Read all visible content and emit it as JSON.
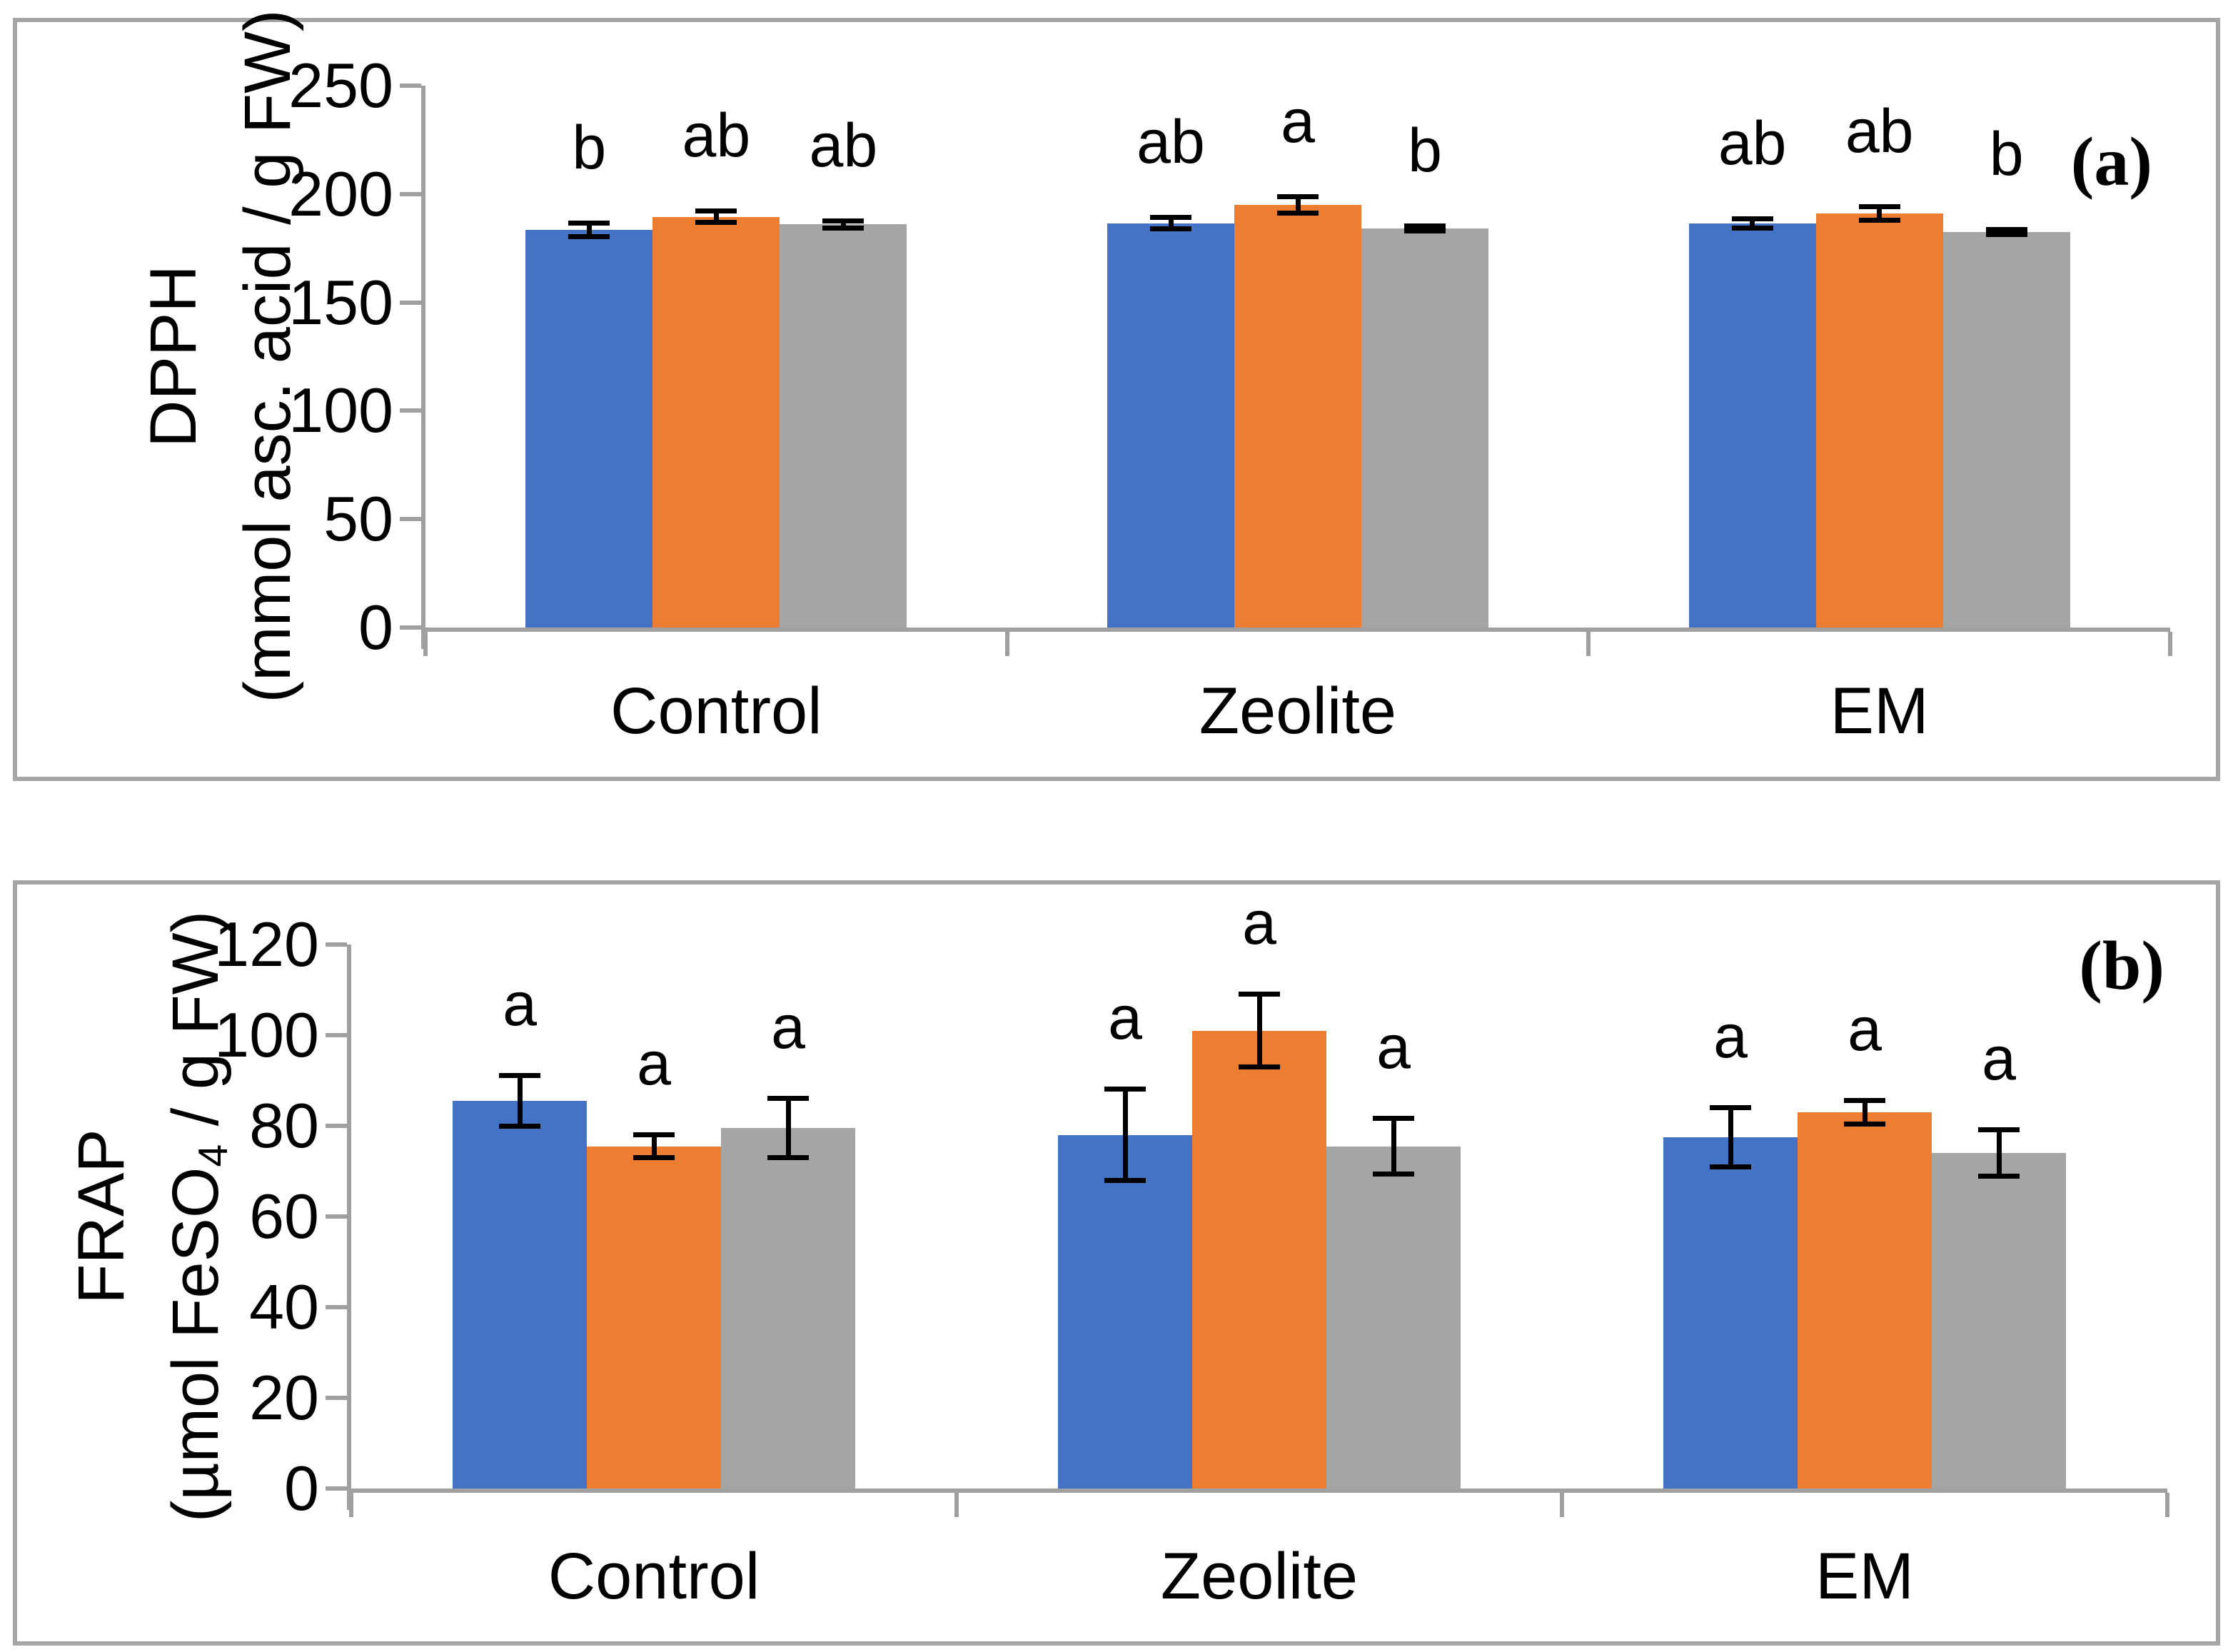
{
  "figure_accent_colors": {
    "bar_blue": "#4472C4",
    "bar_orange": "#ED7D31",
    "bar_gray": "#A5A5A5",
    "axis_gray": "#A0A0A0",
    "panel_border_gray": "#A6A6A6",
    "text_black": "#000000"
  },
  "chart_data": [
    {
      "type": "bar",
      "panel_label": "(a)",
      "title": "",
      "ylabel_line1": "DPPH",
      "ylabel_unit": {
        "pre": "(mmol asc. acid / g FW)",
        "sub": "",
        "post": ""
      },
      "xlabel": "",
      "ylim": [
        0,
        250
      ],
      "yticks": [
        0,
        50,
        100,
        150,
        200,
        250
      ],
      "grid": false,
      "legend": "none",
      "categories": [
        "Control",
        "Zeolite",
        "EM"
      ],
      "series": [
        {
          "name": "blue",
          "color": "#4472C4",
          "values": [
            183.5,
            186.5,
            186.5
          ],
          "errors": [
            3,
            2.5,
            2
          ],
          "letters": [
            "b",
            "ab",
            "ab"
          ]
        },
        {
          "name": "orange",
          "color": "#ED7D31",
          "values": [
            189.5,
            195,
            191
          ],
          "errors": [
            2.5,
            3.5,
            3
          ],
          "letters": [
            "ab",
            "a",
            "ab"
          ]
        },
        {
          "name": "gray",
          "color": "#A5A5A5",
          "values": [
            186,
            184,
            182.5
          ],
          "errors": [
            1.5,
            1,
            1
          ],
          "letters": [
            "ab",
            "b",
            "b"
          ]
        }
      ]
    },
    {
      "type": "bar",
      "panel_label": "(b)",
      "title": "",
      "ylabel_line1": "FRAP",
      "ylabel_unit": {
        "pre": "(µmol FeSO",
        "sub": "4",
        "post": " / g FW)"
      },
      "xlabel": "",
      "ylim": [
        0,
        120
      ],
      "yticks": [
        0,
        20,
        40,
        60,
        80,
        100,
        120
      ],
      "grid": false,
      "legend": "none",
      "categories": [
        "Control",
        "Zeolite",
        "EM"
      ],
      "series": [
        {
          "name": "blue",
          "color": "#4472C4",
          "values": [
            85.5,
            78,
            77.5
          ],
          "errors": [
            5.5,
            10,
            6.5
          ],
          "letters": [
            "a",
            "a",
            "a"
          ]
        },
        {
          "name": "orange",
          "color": "#ED7D31",
          "values": [
            75.5,
            101,
            83
          ],
          "errors": [
            2.5,
            8,
            2.5
          ],
          "letters": [
            "a",
            "a",
            "a"
          ]
        },
        {
          "name": "gray",
          "color": "#A5A5A5",
          "values": [
            79.5,
            75.5,
            74
          ],
          "errors": [
            6.5,
            6,
            5
          ],
          "letters": [
            "a",
            "a",
            "a"
          ]
        }
      ]
    }
  ]
}
